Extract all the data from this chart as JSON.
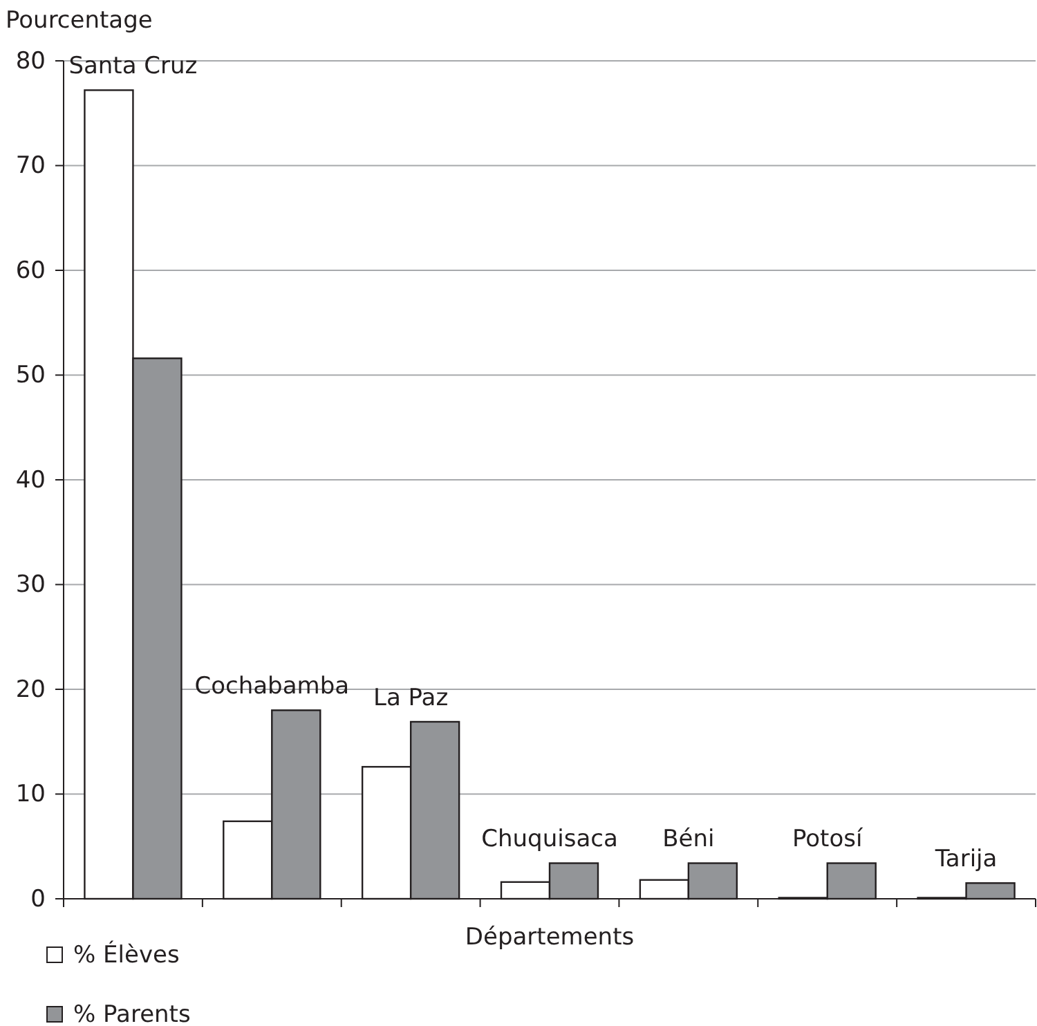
{
  "chart_data": {
    "type": "bar",
    "ylabel": "Pourcentage",
    "xlabel": "Départements",
    "categories": [
      "Santa Cruz",
      "Cochabamba",
      "La Paz",
      "Chuquisaca",
      "Béni",
      "Potosí",
      "Tarija"
    ],
    "series": [
      {
        "name": "% Élèves",
        "color": "#ffffff",
        "values": [
          77.2,
          7.4,
          12.6,
          1.6,
          1.8,
          0.1,
          0.1
        ]
      },
      {
        "name": "% Parents",
        "color": "#939598",
        "values": [
          51.6,
          18.0,
          16.9,
          3.4,
          3.4,
          3.4,
          1.5
        ]
      }
    ],
    "ylim": [
      0,
      80
    ],
    "yticks": [
      0,
      10,
      20,
      30,
      40,
      50,
      60,
      70,
      80
    ],
    "grid": "y",
    "legend": "bottom left"
  }
}
